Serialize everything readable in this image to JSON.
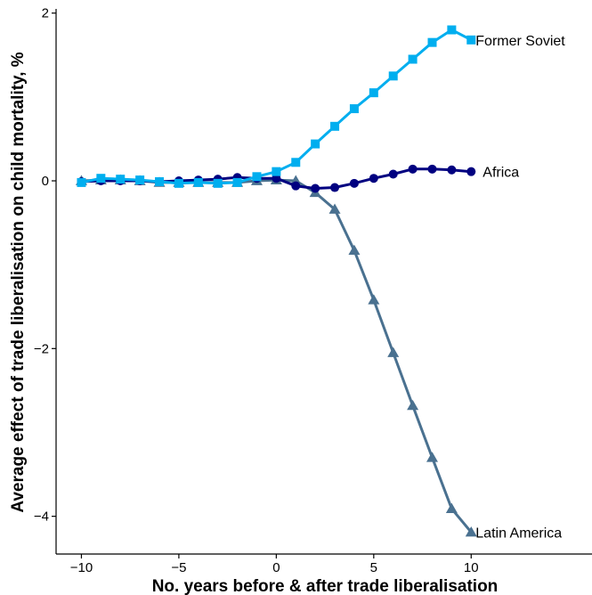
{
  "chart_data": {
    "type": "line",
    "title": "",
    "xlabel": "No. years before & after trade liberalisation",
    "ylabel": "Average effect of trade liberalisation on child mortality, %",
    "xlim": [
      -11.3,
      16.2
    ],
    "ylim": [
      -4.45,
      2.05
    ],
    "xticks": [
      -10,
      -5,
      0,
      5,
      10
    ],
    "yticks": [
      -4,
      -2,
      0,
      2
    ],
    "grid": false,
    "legend": "direct labels at line ends",
    "x": [
      -10,
      -9,
      -8,
      -7,
      -6,
      -5,
      -4,
      -3,
      -2,
      -1,
      0,
      1,
      2,
      3,
      4,
      5,
      6,
      7,
      8,
      9,
      10
    ],
    "series": [
      {
        "name": "Africa",
        "color": "#000080",
        "marker": "circle",
        "values": [
          -0.01,
          0.0,
          0.0,
          0.0,
          -0.01,
          0.0,
          0.01,
          0.02,
          0.04,
          0.03,
          0.03,
          -0.06,
          -0.09,
          -0.08,
          -0.03,
          0.03,
          0.08,
          0.14,
          0.14,
          0.13,
          0.11
        ]
      },
      {
        "name": "Former Soviet",
        "color": "#00AEEF",
        "marker": "square",
        "values": [
          -0.02,
          0.03,
          0.02,
          0.01,
          -0.01,
          -0.03,
          -0.02,
          -0.03,
          -0.02,
          0.05,
          0.11,
          0.22,
          0.44,
          0.65,
          0.86,
          1.05,
          1.25,
          1.45,
          1.65,
          1.8,
          1.68
        ]
      },
      {
        "name": "Latin America",
        "color": "#4A7190",
        "marker": "triangle",
        "values": [
          0.0,
          0.01,
          0.01,
          0.0,
          -0.02,
          -0.02,
          -0.02,
          -0.02,
          -0.02,
          0.0,
          0.01,
          0.0,
          -0.14,
          -0.34,
          -0.83,
          -1.42,
          -2.05,
          -2.68,
          -3.3,
          -3.91,
          -4.19
        ]
      }
    ]
  }
}
